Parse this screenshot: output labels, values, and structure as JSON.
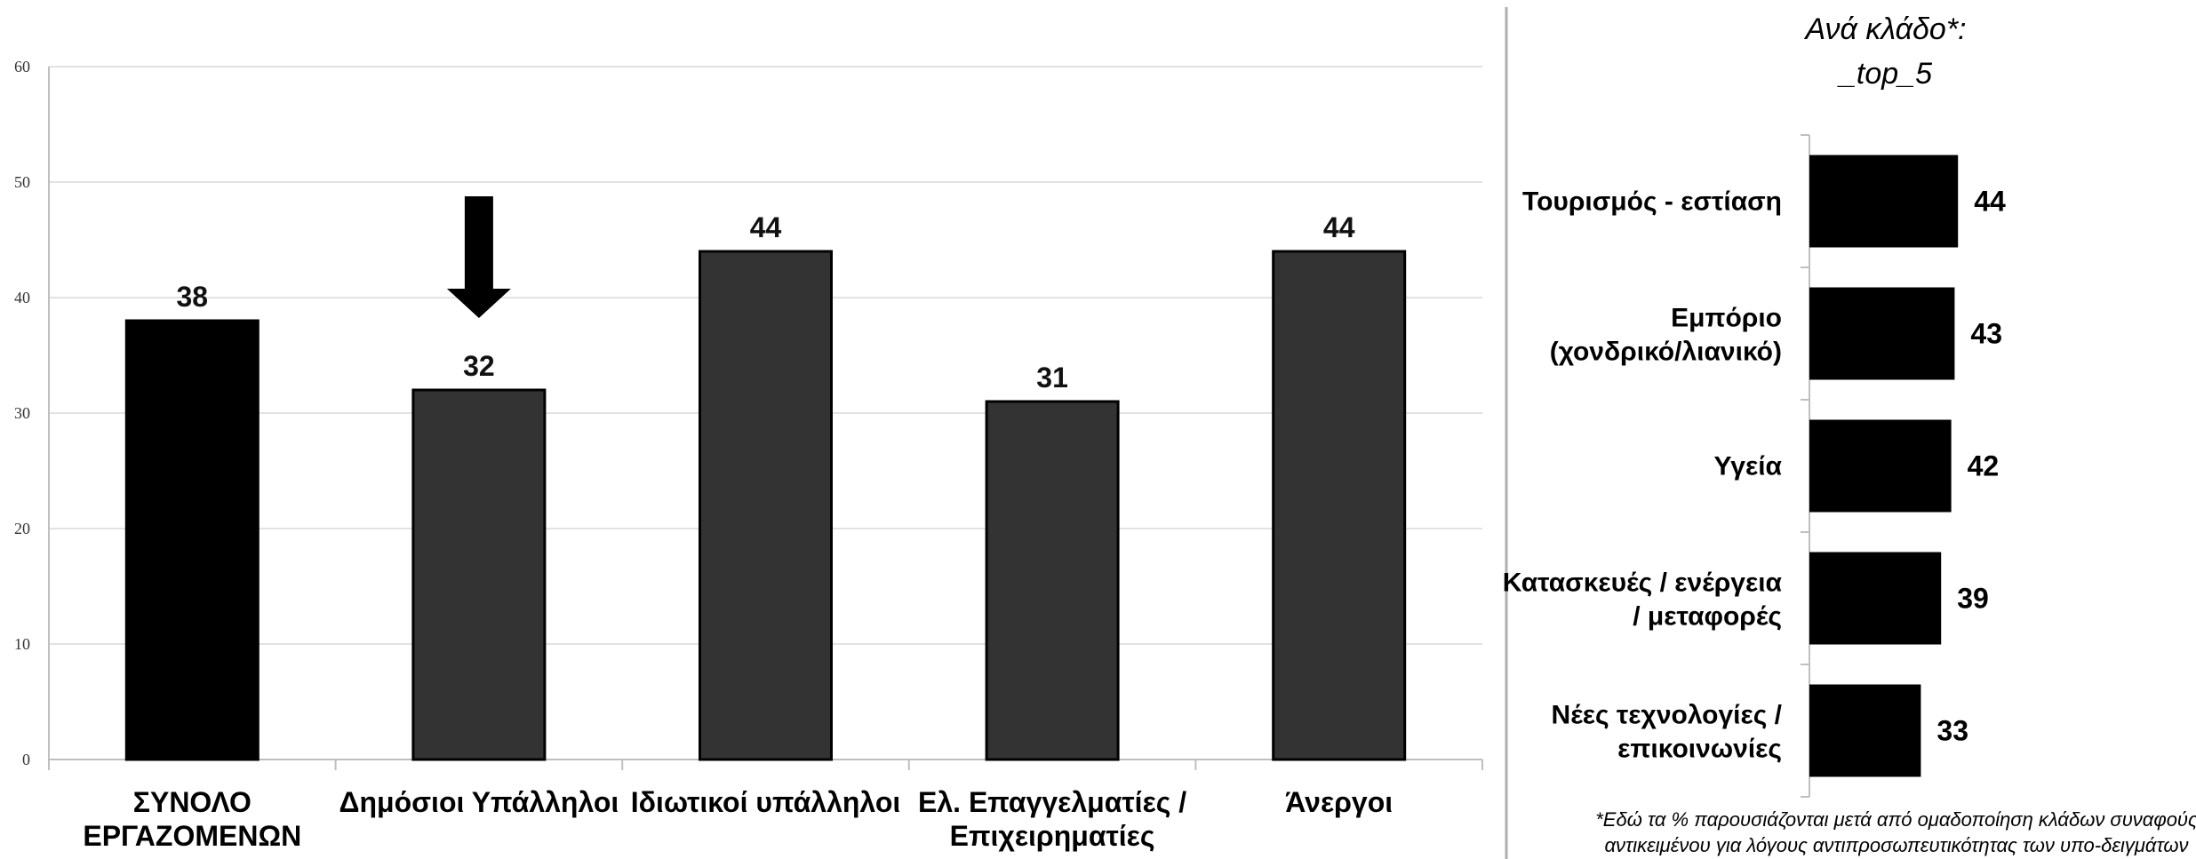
{
  "chart_data": [
    {
      "type": "bar",
      "categories": [
        [
          "ΣΥΝΟΛΟ",
          "ΕΡΓΑΖΟΜΕΝΩΝ"
        ],
        [
          "Δημόσιοι Υπάλληλοι"
        ],
        [
          "Ιδιωτικοί υπάλληλοι"
        ],
        [
          "Ελ. Επαγγελματίες /",
          "Επιχειρηματίες"
        ],
        [
          "Άνεργοι"
        ]
      ],
      "values": [
        38,
        32,
        44,
        31,
        44
      ],
      "data_labels": [
        "38",
        "32",
        "44",
        "31",
        "44"
      ],
      "yticks": [
        "0",
        "10",
        "20",
        "30",
        "40",
        "50",
        "60"
      ],
      "ylim": [
        0,
        60
      ],
      "grid": true,
      "highlight_index": 1,
      "colors": {
        "first": "#000000",
        "rest": "#333333",
        "grid": "#d9d9d9",
        "axis": "#bfbfbf"
      }
    },
    {
      "type": "bar",
      "orientation": "horizontal",
      "title": [
        "Ανά κλάδο*:",
        "_top_5"
      ],
      "categories": [
        [
          "Τουρισμός - εστίαση"
        ],
        [
          "Εμπόριο",
          "(χονδρικό/λιανικό)"
        ],
        [
          "Υγεία"
        ],
        [
          "Κατασκευές / ενέργεια",
          "/ μεταφορές"
        ],
        [
          "Νέες τεχνολογίες /",
          "επικοινωνίες"
        ]
      ],
      "values": [
        44,
        43,
        42,
        39,
        33
      ],
      "data_labels": [
        "44",
        "43",
        "42",
        "39",
        "33"
      ],
      "footnote": [
        "*Εδώ τα % παρουσιάζονται μετά από ομαδοποίηση κλάδων συναφούς",
        "αντικειμένου για λόγους αντιπροσωπευτικότητας των υπο-δειγμάτων"
      ],
      "colors": {
        "bar": "#000000",
        "axis": "#bfbfbf"
      }
    }
  ]
}
